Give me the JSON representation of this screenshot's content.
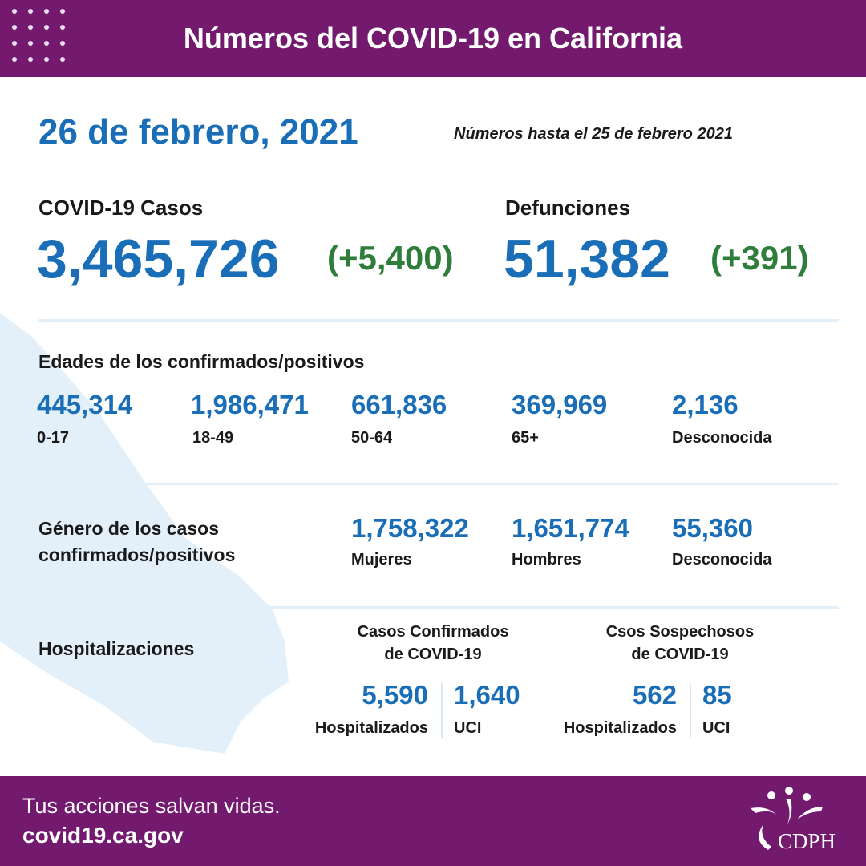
{
  "header": {
    "title": "Números del COVID-19 en California"
  },
  "date": "26 de febrero, 2021",
  "note": "Números hasta el 25 de febrero 2021",
  "cases": {
    "label": "COVID-19 Casos",
    "value": "3,465,726",
    "delta": "(+5,400)"
  },
  "deaths": {
    "label": "Defunciones",
    "value": "51,382",
    "delta": "(+391)"
  },
  "ages": {
    "title": "Edades de los confirmados/positivos",
    "items": [
      {
        "value": "445,314",
        "label": "0-17"
      },
      {
        "value": "1,986,471",
        "label": "18-49"
      },
      {
        "value": "661,836",
        "label": "50-64"
      },
      {
        "value": "369,969",
        "label": "65+"
      },
      {
        "value": "2,136",
        "label": "Desconocida"
      }
    ]
  },
  "gender": {
    "title_line1": "Género de los casos",
    "title_line2": "confirmados/positivos",
    "items": [
      {
        "value": "1,758,322",
        "label": "Mujeres"
      },
      {
        "value": "1,651,774",
        "label": "Hombres"
      },
      {
        "value": "55,360",
        "label": "Desconocida"
      }
    ]
  },
  "hosp": {
    "title": "Hospitalizaciones",
    "confirmed": {
      "title_line1": "Casos Confirmados",
      "title_line2": "de COVID-19",
      "hospitalized": {
        "value": "5,590",
        "label": "Hospitalizados"
      },
      "icu": {
        "value": "1,640",
        "label": "UCI"
      }
    },
    "suspected": {
      "title_line1": "Csos Sospechosos",
      "title_line2": "de COVID-19",
      "hospitalized": {
        "value": "562",
        "label": "Hospitalizados"
      },
      "icu": {
        "value": "85",
        "label": "UCI"
      }
    }
  },
  "footer": {
    "slogan": "Tus acciones salvan vidas.",
    "site": "covid19.ca.gov",
    "logo_text": "CDPH"
  },
  "colors": {
    "header_bg": "#741a6e",
    "number_blue": "#1a6eb8",
    "delta_green": "#2e7d3a",
    "map_fill": "#e3f0fa"
  }
}
